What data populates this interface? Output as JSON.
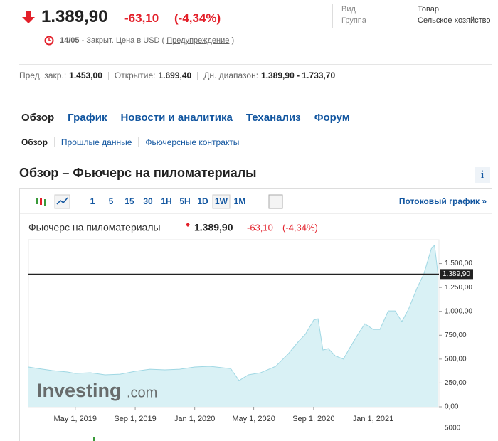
{
  "header": {
    "price": "1.389,90",
    "change": "-63,10",
    "change_pct": "(-4,34%)",
    "date": "14/05",
    "status": "- Закрыт. Цена в USD (",
    "warning": "Предупреждение",
    "status_end": ")"
  },
  "info": [
    {
      "label": "Вид",
      "value": "Товар"
    },
    {
      "label": "Группа",
      "value": "Сельское хозяйство"
    }
  ],
  "stats": [
    {
      "label": "Пред. закр.:",
      "value": "1.453,00"
    },
    {
      "label": "Открытие:",
      "value": "1.699,40"
    },
    {
      "label": "Дн. диапазон:",
      "value": "1.389,90 - 1.733,70"
    }
  ],
  "tabs": [
    "Обзор",
    "График",
    "Новости и аналитика",
    "Теханализ",
    "Форум"
  ],
  "subtabs": [
    "Обзор",
    "Прошлые данные",
    "Фьючерсные контракты"
  ],
  "section_title": "Обзор – Фьючерс на пиломатериалы",
  "toolbar": {
    "intervals": [
      "1",
      "5",
      "15",
      "30",
      "1H",
      "5H",
      "1D",
      "1W",
      "1M"
    ],
    "stream_link": "Потоковый график »"
  },
  "chart_data": {
    "type": "area",
    "title": "Фьючерс на пиломатериалы",
    "price": "1.389,90",
    "change": "-63,10",
    "change_pct": "(-4,34%)",
    "color": "#333333",
    "fill": "#d9f1f5",
    "x": [
      "2019-01-25",
      "2019-02-15",
      "2019-03-15",
      "2019-04-15",
      "2019-05-01",
      "2019-06-01",
      "2019-07-01",
      "2019-08-01",
      "2019-09-01",
      "2019-10-01",
      "2019-11-01",
      "2019-12-01",
      "2020-01-01",
      "2020-02-01",
      "2020-03-15",
      "2020-04-01",
      "2020-04-20",
      "2020-05-15",
      "2020-06-15",
      "2020-07-10",
      "2020-08-01",
      "2020-08-15",
      "2020-09-01",
      "2020-09-10",
      "2020-09-20",
      "2020-10-01",
      "2020-10-15",
      "2020-11-01",
      "2020-11-15",
      "2020-12-01",
      "2020-12-15",
      "2021-01-01",
      "2021-01-15",
      "2021-02-01",
      "2021-02-15",
      "2021-03-01",
      "2021-03-15",
      "2021-04-01",
      "2021-04-15",
      "2021-05-01",
      "2021-05-07",
      "2021-05-14"
    ],
    "values": [
      417,
      400,
      380,
      365,
      350,
      357,
      335,
      342,
      372,
      394,
      387,
      394,
      417,
      424,
      400,
      275,
      335,
      357,
      424,
      550,
      685,
      760,
      908,
      922,
      595,
      610,
      535,
      500,
      625,
      760,
      870,
      811,
      811,
      1004,
      1004,
      893,
      1027,
      1243,
      1391,
      1667,
      1690,
      1389.9
    ],
    "xlim": [
      "2019-01-25",
      "2021-05-16"
    ],
    "xticks": [
      {
        "value": "2019-05-01",
        "label": "May 1, 2019"
      },
      {
        "value": "2019-09-01",
        "label": "Sep 1, 2019"
      },
      {
        "value": "2020-01-01",
        "label": "Jan 1, 2020"
      },
      {
        "value": "2020-05-01",
        "label": "May 1, 2020"
      },
      {
        "value": "2020-09-01",
        "label": "Sep 1, 2020"
      },
      {
        "value": "2021-01-01",
        "label": "Jan 1, 2021"
      }
    ],
    "ylim": [
      0,
      1750
    ],
    "yticks": [
      {
        "value": 0,
        "label": "0,00"
      },
      {
        "value": 250,
        "label": "250,00"
      },
      {
        "value": 500,
        "label": "500,00"
      },
      {
        "value": 750,
        "label": "750,00"
      },
      {
        "value": 1000,
        "label": "1.000,00"
      },
      {
        "value": 1250,
        "label": "1.250,00"
      },
      {
        "value": 1500,
        "label": "1.500,00"
      }
    ],
    "current": {
      "value": 1389.9,
      "label": "1.389,90"
    },
    "volume_tick": {
      "value": 5000,
      "label": "5000"
    },
    "watermark": {
      "brand": "Investing",
      "suffix": ".com"
    }
  }
}
